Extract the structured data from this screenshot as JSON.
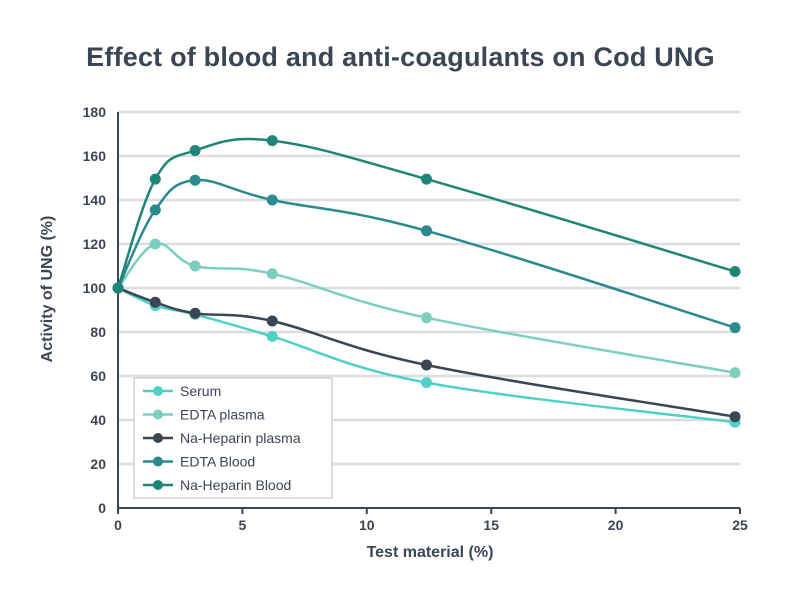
{
  "chart_data": {
    "type": "line",
    "title": "Effect of blood and anti-coagulants on Cod UNG",
    "xlabel": "Test material (%)",
    "ylabel": "Activity of UNG (%)",
    "xlim": [
      0,
      25
    ],
    "ylim": [
      0,
      180
    ],
    "x_ticks": [
      "0",
      "5",
      "10",
      "15",
      "20",
      "25"
    ],
    "y_ticks": [
      "0",
      "20",
      "40",
      "60",
      "80",
      "100",
      "120",
      "140",
      "160",
      "180"
    ],
    "grid": true,
    "legend_position": "bottom-left",
    "x": [
      0,
      1.5,
      3.1,
      6.2,
      12.4,
      24.8
    ],
    "series": [
      {
        "name": "Serum",
        "color": "#4fd1c5",
        "values": [
          100,
          92,
          88,
          78,
          57,
          39
        ]
      },
      {
        "name": "EDTA plasma",
        "color": "#7ccfbf",
        "values": [
          100,
          120,
          110,
          106.5,
          86.5,
          61.5
        ]
      },
      {
        "name": "Na-Heparin plasma",
        "color": "#3b4654",
        "values": [
          100,
          93.5,
          88.5,
          85,
          65,
          41.5
        ]
      },
      {
        "name": "EDTA Blood",
        "color": "#2a8a8f",
        "values": [
          100,
          135.5,
          149,
          140,
          126,
          82
        ]
      },
      {
        "name": "Na-Heparin Blood",
        "color": "#1f8578",
        "values": [
          100,
          149.5,
          162.5,
          167,
          149.5,
          107.5
        ]
      }
    ]
  }
}
